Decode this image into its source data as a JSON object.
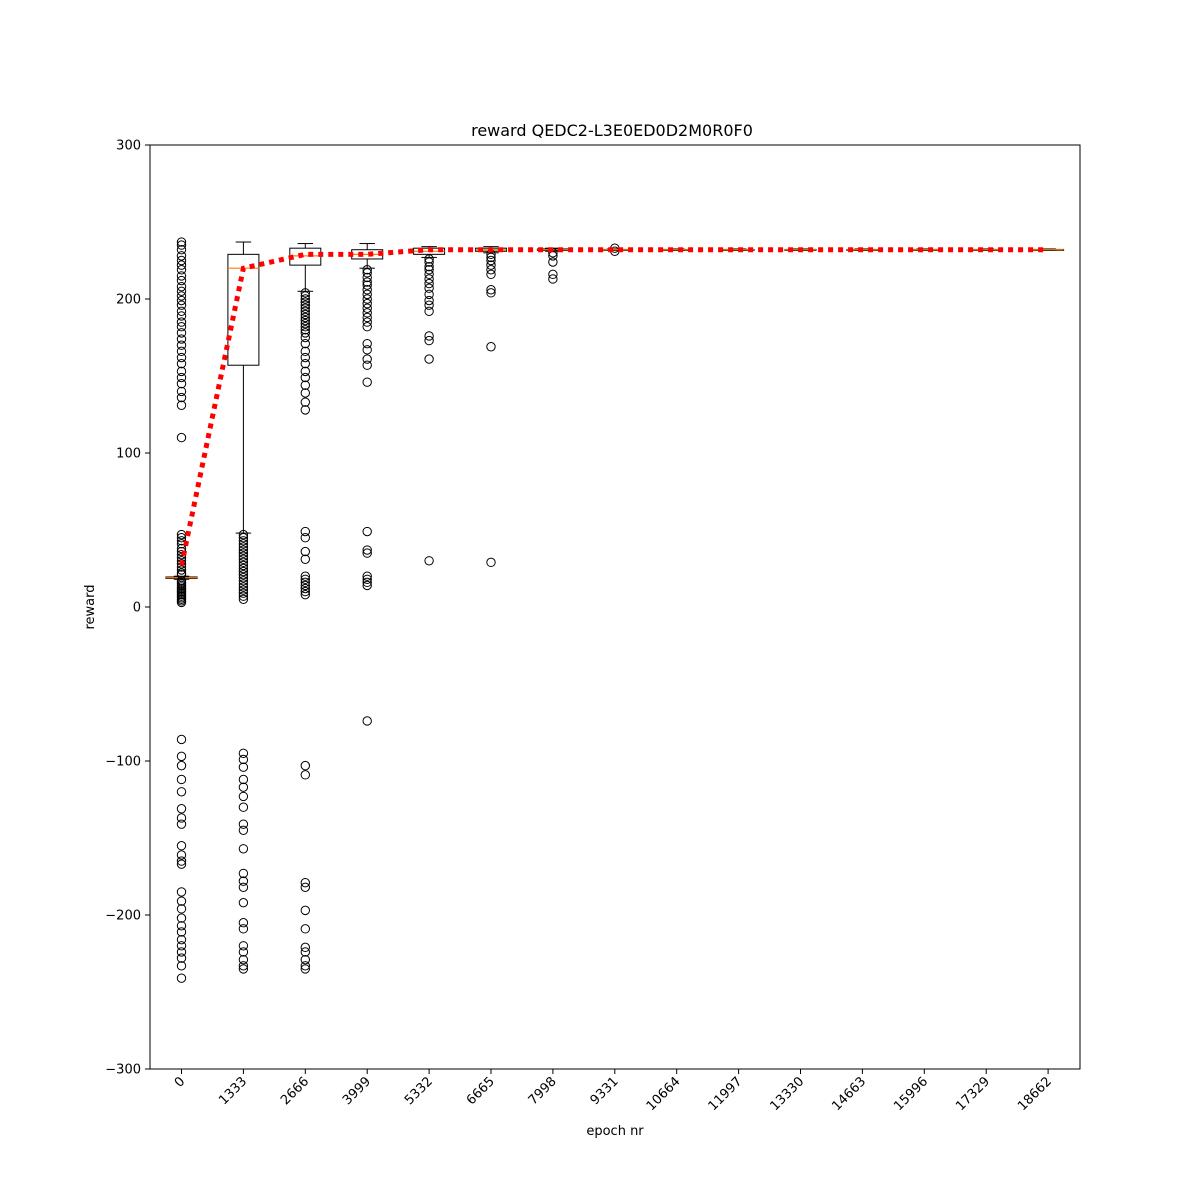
{
  "chart_data": {
    "type": "box",
    "title": "reward QEDC2-L3E0ED0D2M0R0F0",
    "xlabel": "epoch nr",
    "ylabel": "reward",
    "ylim": [
      -300,
      300
    ],
    "yticks": [
      -300,
      -200,
      -100,
      0,
      100,
      200,
      300
    ],
    "ytick_labels": [
      "−300",
      "−200",
      "−100",
      "0",
      "100",
      "200",
      "300"
    ],
    "categories": [
      "0",
      "1333",
      "2666",
      "3999",
      "5332",
      "6665",
      "7998",
      "9331",
      "10664",
      "11997",
      "13330",
      "14663",
      "15996",
      "17329",
      "18662"
    ],
    "grid": false,
    "median_color": "#ff7f0e",
    "box_color": "#000000",
    "mean_line_color": "#ff0000",
    "boxes": [
      {
        "epoch": "0",
        "q1": 18.5,
        "median": 19,
        "q3": 19.5,
        "whisker_low": 18,
        "whisker_high": 20,
        "outliers": [
          237,
          235,
          232,
          228,
          225,
          222,
          219,
          215,
          212,
          208,
          205,
          202,
          199,
          196,
          192,
          189,
          185,
          182,
          178,
          174,
          170,
          166,
          162,
          158,
          153,
          149,
          145,
          140,
          136,
          131,
          110,
          47,
          45,
          43,
          41,
          38,
          36,
          34,
          32,
          30,
          28,
          26,
          24,
          22,
          21,
          17,
          16,
          15,
          14,
          13,
          12,
          11,
          10,
          9,
          8,
          7,
          6,
          5,
          4,
          3,
          -86,
          -97,
          -103,
          -112,
          -120,
          -131,
          -137,
          -141,
          -155,
          -161,
          -165,
          -167,
          -185,
          -191,
          -196,
          -202,
          -207,
          -211,
          -216,
          -220,
          -224,
          -228,
          -233,
          -241
        ]
      },
      {
        "epoch": "1333",
        "q1": 157,
        "median": 220,
        "q3": 229,
        "whisker_low": 48,
        "whisker_high": 237,
        "outliers": [
          47,
          45,
          43,
          41,
          39,
          37,
          35,
          33,
          31,
          29,
          27,
          25,
          23,
          21,
          19,
          17,
          15,
          13,
          11,
          9,
          7,
          5,
          -95,
          -99,
          -104,
          -112,
          -117,
          -123,
          -130,
          -141,
          -145,
          -157,
          -173,
          -178,
          -182,
          -192,
          -205,
          -209,
          -220,
          -224,
          -229,
          -233,
          -235
        ]
      },
      {
        "epoch": "2666",
        "q1": 222,
        "median": 228,
        "q3": 233,
        "whisker_low": 205,
        "whisker_high": 236,
        "outliers": [
          204,
          202,
          200,
          198,
          196,
          194,
          192,
          190,
          188,
          186,
          184,
          182,
          180,
          178,
          175,
          171,
          166,
          162,
          158,
          153,
          149,
          144,
          139,
          133,
          128,
          49,
          45,
          36,
          31,
          20,
          18,
          16,
          14,
          12,
          10,
          8,
          -103,
          -109,
          -179,
          -182,
          -197,
          -209,
          -221,
          -224,
          -229,
          -233,
          -235
        ]
      },
      {
        "epoch": "3999",
        "q1": 226,
        "median": 229,
        "q3": 232,
        "whisker_low": 220,
        "whisker_high": 236,
        "outliers": [
          219,
          217,
          214,
          211,
          209,
          206,
          203,
          200,
          197,
          194,
          191,
          188,
          185,
          182,
          171,
          167,
          161,
          157,
          146,
          49,
          37,
          35,
          20,
          18,
          16,
          14,
          -74
        ]
      },
      {
        "epoch": "5332",
        "q1": 229,
        "median": 231,
        "q3": 233,
        "whisker_low": 227,
        "whisker_high": 234,
        "outliers": [
          226,
          224,
          221,
          219,
          216,
          213,
          210,
          207,
          203,
          199,
          196,
          192,
          176,
          173,
          161,
          30
        ]
      },
      {
        "epoch": "6665",
        "q1": 231,
        "median": 232,
        "q3": 233,
        "whisker_low": 230,
        "whisker_high": 234,
        "outliers": [
          229,
          227,
          225,
          222,
          219,
          216,
          206,
          204,
          169,
          29
        ]
      },
      {
        "epoch": "7998",
        "q1": 231.5,
        "median": 232,
        "q3": 232.5,
        "whisker_low": 231,
        "whisker_high": 233,
        "outliers": [
          230,
          228,
          224,
          216,
          213
        ]
      },
      {
        "epoch": "9331",
        "q1": 231.8,
        "median": 232,
        "q3": 232.2,
        "whisker_low": 231.5,
        "whisker_high": 232.5,
        "outliers": [
          233,
          231
        ]
      },
      {
        "epoch": "10664",
        "q1": 231.8,
        "median": 232,
        "q3": 232.2,
        "whisker_low": 231.5,
        "whisker_high": 232.5,
        "outliers": []
      },
      {
        "epoch": "11997",
        "q1": 231.8,
        "median": 232,
        "q3": 232.2,
        "whisker_low": 231.5,
        "whisker_high": 232.5,
        "outliers": []
      },
      {
        "epoch": "13330",
        "q1": 231.8,
        "median": 232,
        "q3": 232.2,
        "whisker_low": 231.5,
        "whisker_high": 232.5,
        "outliers": []
      },
      {
        "epoch": "14663",
        "q1": 231.8,
        "median": 232,
        "q3": 232.2,
        "whisker_low": 231.5,
        "whisker_high": 232.5,
        "outliers": []
      },
      {
        "epoch": "15996",
        "q1": 231.8,
        "median": 232,
        "q3": 232.2,
        "whisker_low": 231.5,
        "whisker_high": 232.5,
        "outliers": []
      },
      {
        "epoch": "17329",
        "q1": 231.8,
        "median": 232,
        "q3": 232.2,
        "whisker_low": 231.5,
        "whisker_high": 232.5,
        "outliers": []
      },
      {
        "epoch": "18662",
        "q1": 231.8,
        "median": 232,
        "q3": 232.2,
        "whisker_low": 231.5,
        "whisker_high": 232.5,
        "outliers": []
      }
    ],
    "mean_line": {
      "style": "dotted",
      "values": [
        27,
        220,
        229,
        229,
        232,
        232,
        232,
        232,
        232,
        232,
        232,
        232,
        232,
        232,
        232
      ]
    }
  }
}
